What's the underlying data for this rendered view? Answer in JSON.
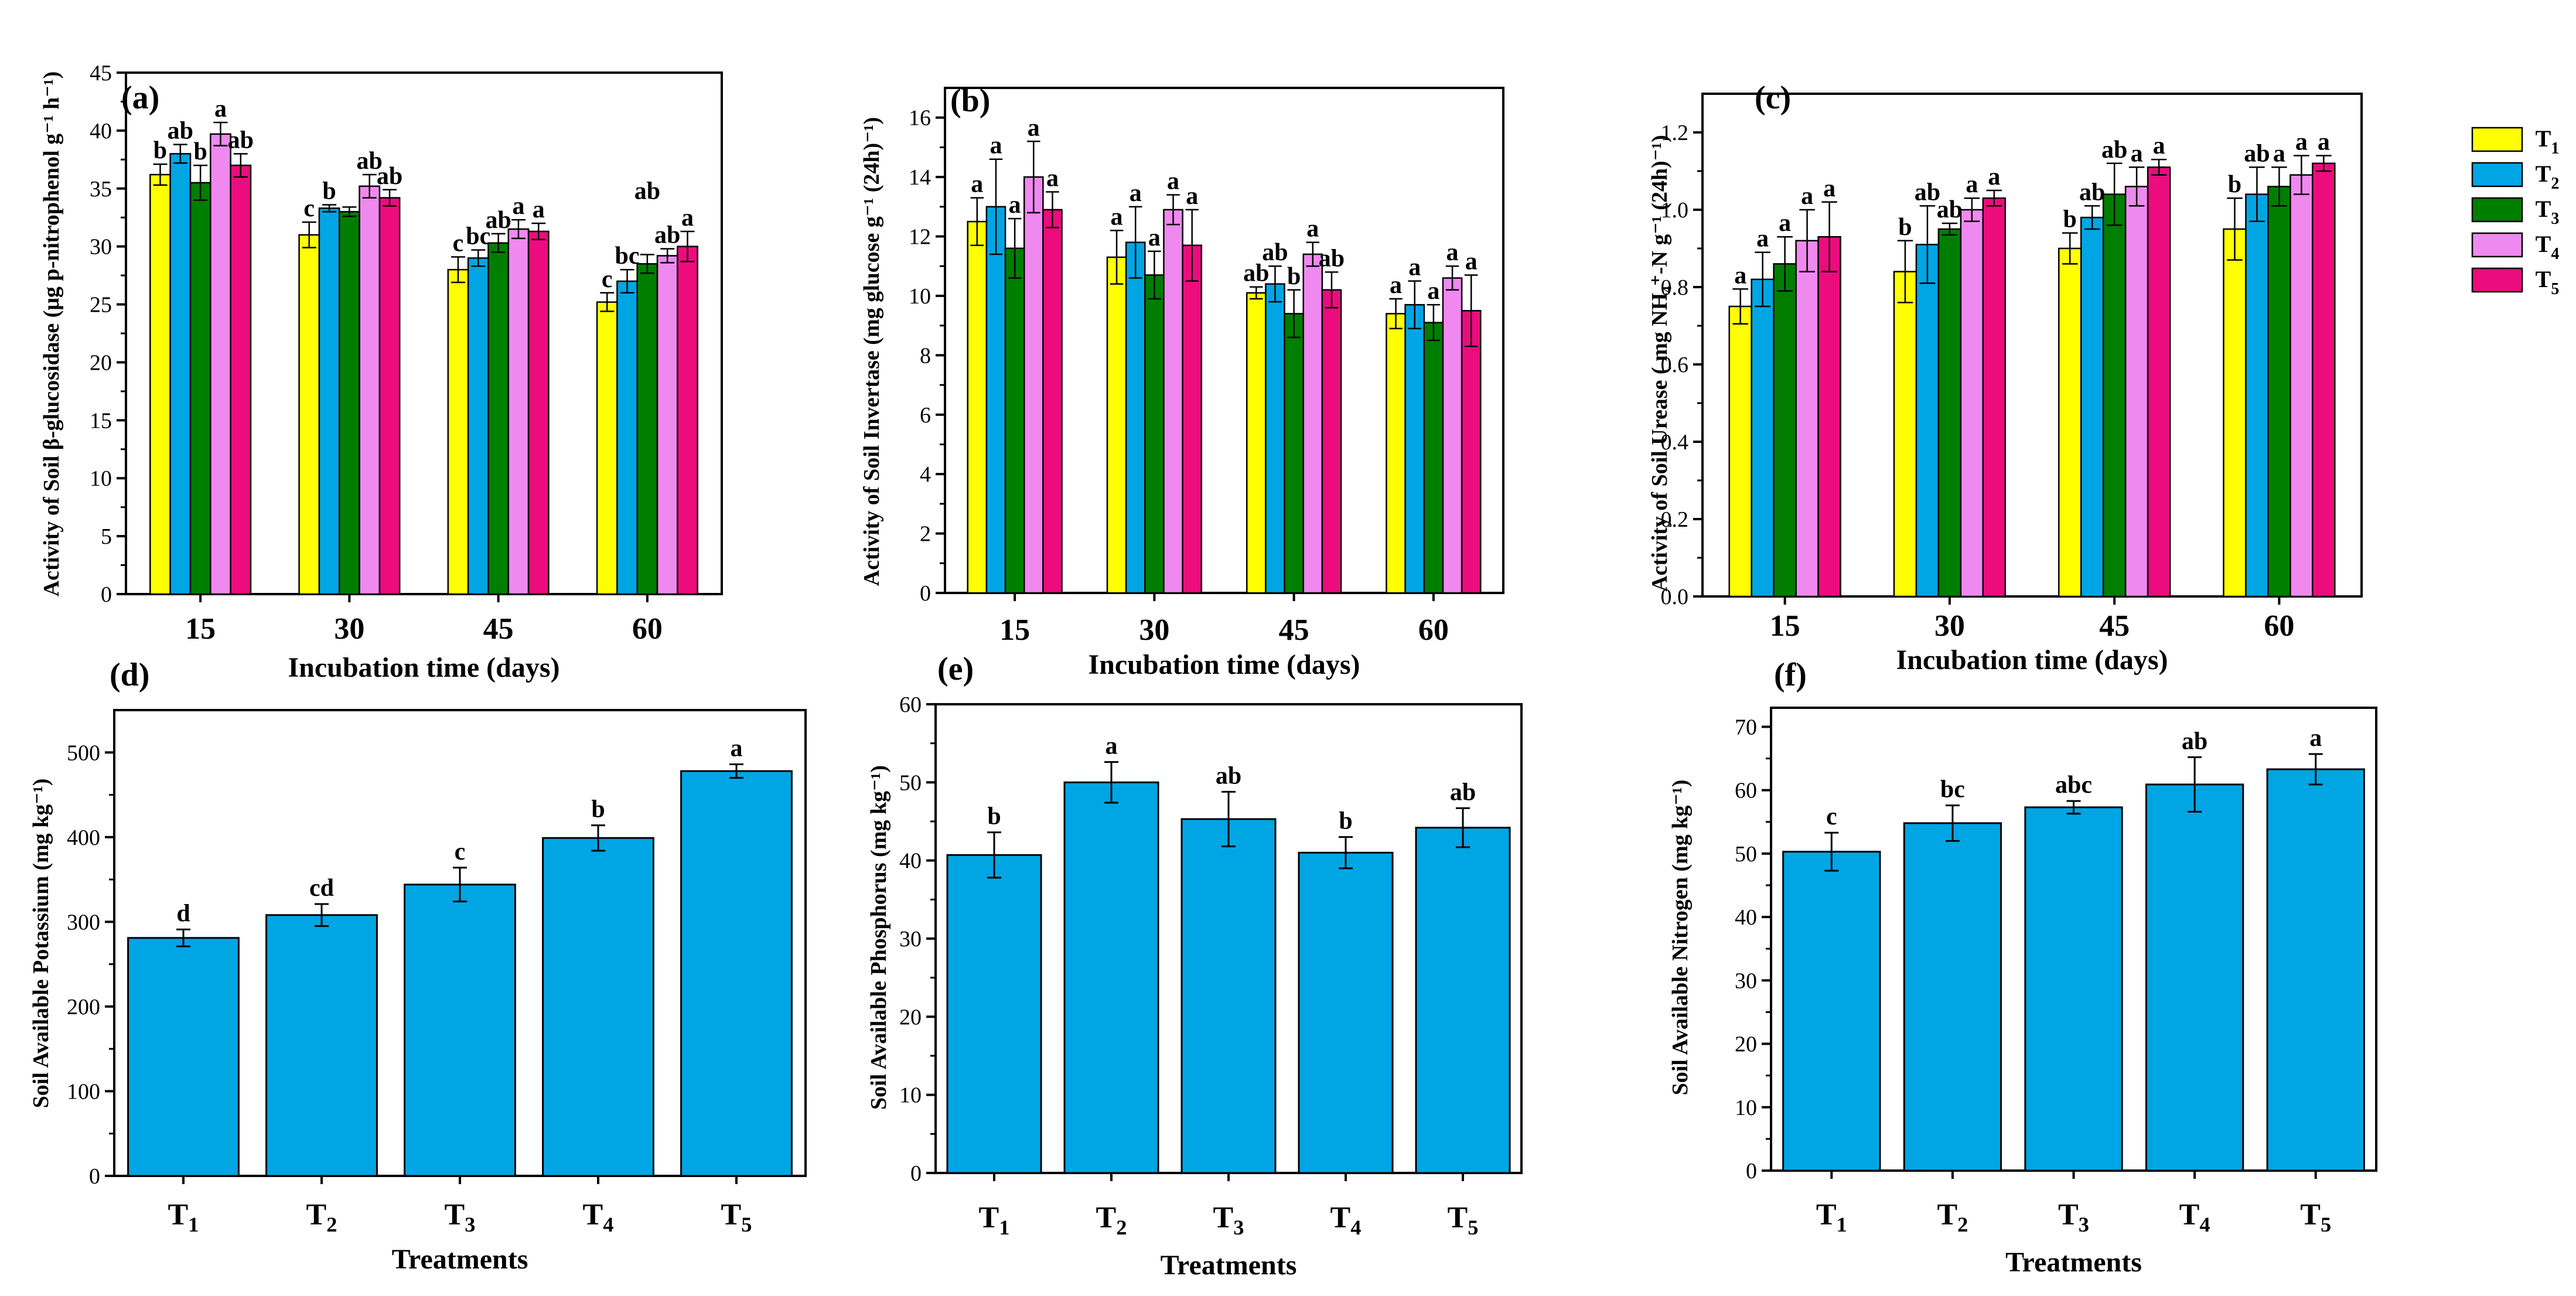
{
  "legend": {
    "items": [
      {
        "main": "T",
        "sub": "1",
        "color": "#ffff00"
      },
      {
        "main": "T",
        "sub": "2",
        "color": "#00a6e4"
      },
      {
        "main": "T",
        "sub": "3",
        "color": "#007e00"
      },
      {
        "main": "T",
        "sub": "4",
        "color": "#ef89ef"
      },
      {
        "main": "T",
        "sub": "5",
        "color": "#ec0c7e"
      }
    ]
  },
  "chart_data": [
    {
      "id": "a",
      "type": "bar",
      "panel_label": "(a)",
      "xlabel": "Incubation time (days)",
      "ylabel": "Activity of Soil β-glucosidase (μg p-nitrophenol g⁻¹ h⁻¹)",
      "ylim": [
        0,
        45
      ],
      "yticks": [
        0,
        5,
        10,
        15,
        20,
        25,
        30,
        35,
        40,
        45
      ],
      "categories": [
        "15",
        "30",
        "45",
        "60"
      ],
      "series": [
        {
          "name": "T1",
          "color": "#ffff00",
          "values": [
            36.2,
            31.0,
            28.0,
            25.2
          ],
          "errors": [
            0.9,
            1.1,
            1.1,
            0.8
          ],
          "letters": [
            "b",
            "c",
            "c",
            "c"
          ]
        },
        {
          "name": "T2",
          "color": "#00a6e4",
          "values": [
            38.0,
            33.3,
            29.0,
            27.0
          ],
          "errors": [
            0.8,
            0.3,
            0.7,
            1.0
          ],
          "letters": [
            "ab",
            "b",
            "bc",
            "bc"
          ]
        },
        {
          "name": "T3",
          "color": "#007e00",
          "values": [
            35.5,
            33.0,
            30.3,
            28.5
          ],
          "errors": [
            1.5,
            0.4,
            0.8,
            0.8
          ],
          "letters": [
            "b",
            "",
            "ab",
            ""
          ]
        },
        {
          "name": "T4",
          "color": "#ef89ef",
          "values": [
            39.7,
            35.2,
            31.5,
            29.2
          ],
          "errors": [
            1.0,
            1.0,
            0.8,
            0.6
          ],
          "letters": [
            "a",
            "ab",
            "a",
            "ab"
          ]
        },
        {
          "name": "T5",
          "color": "#ec0c7e",
          "values": [
            37.0,
            34.2,
            31.3,
            30.0
          ],
          "errors": [
            1.0,
            0.7,
            0.7,
            1.3
          ],
          "letters": [
            "ab",
            "ab",
            "a",
            "a"
          ]
        }
      ],
      "extra_labels": [
        {
          "text": "ab",
          "group": 3,
          "series": 2
        }
      ]
    },
    {
      "id": "b",
      "type": "bar",
      "panel_label": "(b)",
      "xlabel": "Incubation time (days)",
      "ylabel": "Activity of Soil Invertase (mg glucose g⁻¹ (24h)⁻¹)",
      "ylim": [
        0,
        17
      ],
      "yticks": [
        0,
        2,
        4,
        6,
        8,
        10,
        12,
        14,
        16
      ],
      "categories": [
        "15",
        "30",
        "45",
        "60"
      ],
      "series": [
        {
          "name": "T1",
          "color": "#ffff00",
          "values": [
            12.5,
            11.3,
            10.1,
            9.4
          ],
          "errors": [
            0.8,
            0.9,
            0.2,
            0.5
          ],
          "letters": [
            "a",
            "a",
            "ab",
            "a"
          ]
        },
        {
          "name": "T2",
          "color": "#00a6e4",
          "values": [
            13.0,
            11.8,
            10.4,
            9.7
          ],
          "errors": [
            1.6,
            1.2,
            0.6,
            0.8
          ],
          "letters": [
            "a",
            "a",
            "ab",
            "a"
          ]
        },
        {
          "name": "T3",
          "color": "#007e00",
          "values": [
            11.6,
            10.7,
            9.4,
            9.1
          ],
          "errors": [
            1.0,
            0.8,
            0.8,
            0.6
          ],
          "letters": [
            "a",
            "a",
            "b",
            "a"
          ]
        },
        {
          "name": "T4",
          "color": "#ef89ef",
          "values": [
            14.0,
            12.9,
            11.4,
            10.6
          ],
          "errors": [
            1.2,
            0.5,
            0.4,
            0.4
          ],
          "letters": [
            "a",
            "a",
            "a",
            "a"
          ]
        },
        {
          "name": "T5",
          "color": "#ec0c7e",
          "values": [
            12.9,
            11.7,
            10.2,
            9.5
          ],
          "errors": [
            0.6,
            1.2,
            0.6,
            1.2
          ],
          "letters": [
            "a",
            "a",
            "ab",
            "a"
          ]
        }
      ],
      "extra_labels": []
    },
    {
      "id": "c",
      "type": "bar",
      "panel_label": "(c)",
      "xlabel": "Incubation time (days)",
      "ylabel": "Activity of Soil  Urease ( mg NH₄⁺-N g⁻¹ (24h)⁻¹)",
      "ylim": [
        0,
        1.3
      ],
      "yticks": [
        0.0,
        0.2,
        0.4,
        0.6,
        0.8,
        1.0,
        1.2
      ],
      "categories": [
        "15",
        "30",
        "45",
        "60"
      ],
      "series": [
        {
          "name": "T1",
          "color": "#ffff00",
          "values": [
            0.75,
            0.84,
            0.9,
            0.95
          ],
          "errors": [
            0.045,
            0.08,
            0.04,
            0.08
          ],
          "letters": [
            "a",
            "b",
            "b",
            "b"
          ]
        },
        {
          "name": "T2",
          "color": "#00a6e4",
          "values": [
            0.82,
            0.91,
            0.98,
            1.04
          ],
          "errors": [
            0.07,
            0.1,
            0.03,
            0.07
          ],
          "letters": [
            "a",
            "ab",
            "ab",
            "ab"
          ]
        },
        {
          "name": "T3",
          "color": "#007e00",
          "values": [
            0.86,
            0.95,
            1.04,
            1.06
          ],
          "errors": [
            0.07,
            0.015,
            0.08,
            0.05
          ],
          "letters": [
            "a",
            "ab",
            "ab",
            "a"
          ]
        },
        {
          "name": "T4",
          "color": "#ef89ef",
          "values": [
            0.92,
            1.0,
            1.06,
            1.09
          ],
          "errors": [
            0.08,
            0.03,
            0.05,
            0.05
          ],
          "letters": [
            "a",
            "a",
            "a",
            "a"
          ]
        },
        {
          "name": "T5",
          "color": "#ec0c7e",
          "values": [
            0.93,
            1.03,
            1.11,
            1.12
          ],
          "errors": [
            0.09,
            0.02,
            0.02,
            0.02
          ],
          "letters": [
            "a",
            "a",
            "a",
            "a"
          ]
        }
      ],
      "extra_labels": []
    },
    {
      "id": "d",
      "type": "bar",
      "panel_label": "(d)",
      "xlabel": "Treatments",
      "ylabel": "Soil Available Potassium (mg kg⁻¹)",
      "ylim": [
        0,
        550
      ],
      "yticks": [
        0,
        100,
        200,
        300,
        400,
        500
      ],
      "categories": [
        {
          "main": "T",
          "sub": "1"
        },
        {
          "main": "T",
          "sub": "2"
        },
        {
          "main": "T",
          "sub": "3"
        },
        {
          "main": "T",
          "sub": "4"
        },
        {
          "main": "T",
          "sub": "5"
        }
      ],
      "color": "#00a6e4",
      "values": [
        281,
        308,
        344,
        399,
        478
      ],
      "errors": [
        10,
        13,
        20,
        15,
        8
      ],
      "letters": [
        "d",
        "cd",
        "c",
        "b",
        "a"
      ]
    },
    {
      "id": "e",
      "type": "bar",
      "panel_label": "(e)",
      "xlabel": "Treatments",
      "ylabel": "Soil Available Phosphorus (mg kg⁻¹)",
      "ylim": [
        0,
        60
      ],
      "yticks": [
        0,
        10,
        20,
        30,
        40,
        50,
        60
      ],
      "categories": [
        {
          "main": "T",
          "sub": "1"
        },
        {
          "main": "T",
          "sub": "2"
        },
        {
          "main": "T",
          "sub": "3"
        },
        {
          "main": "T",
          "sub": "4"
        },
        {
          "main": "T",
          "sub": "5"
        }
      ],
      "color": "#00a6e4",
      "values": [
        40.7,
        50.0,
        45.3,
        41.0,
        44.2
      ],
      "errors": [
        2.9,
        2.6,
        3.5,
        2.0,
        2.5
      ],
      "letters": [
        "b",
        "a",
        "ab",
        "b",
        "ab"
      ]
    },
    {
      "id": "f",
      "type": "bar",
      "panel_label": "(f)",
      "xlabel": "Treatments",
      "ylabel": "Soil Available Nitrogen (mg kg⁻¹)",
      "ylim": [
        0,
        73
      ],
      "yticks": [
        0,
        10,
        20,
        30,
        40,
        50,
        60,
        70
      ],
      "categories": [
        {
          "main": "T",
          "sub": "1"
        },
        {
          "main": "T",
          "sub": "2"
        },
        {
          "main": "T",
          "sub": "3"
        },
        {
          "main": "T",
          "sub": "4"
        },
        {
          "main": "T",
          "sub": "5"
        }
      ],
      "color": "#00a6e4",
      "values": [
        50.3,
        54.8,
        57.3,
        60.9,
        63.3
      ],
      "errors": [
        3.0,
        2.8,
        1.0,
        4.3,
        2.4
      ],
      "letters": [
        "c",
        "bc",
        "abc",
        "ab",
        "a"
      ]
    }
  ]
}
